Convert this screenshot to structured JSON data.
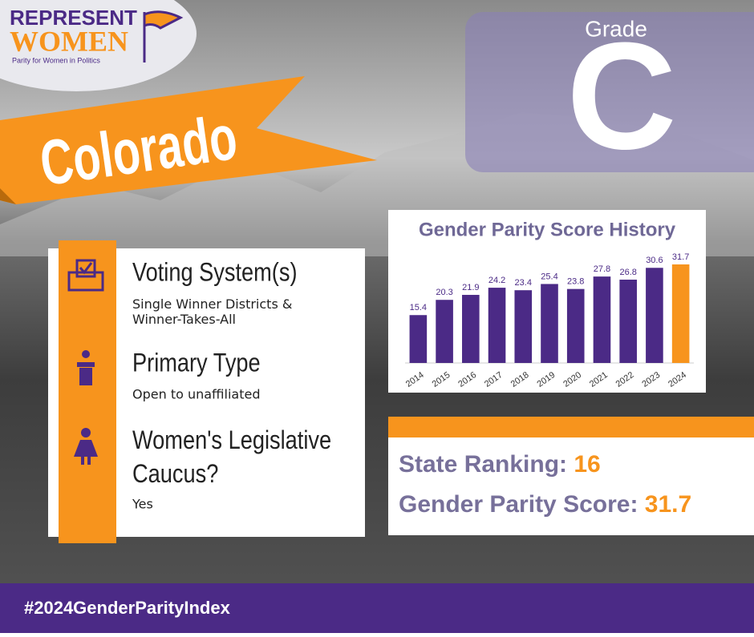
{
  "logo": {
    "line1": "REPRESENT",
    "line2": "WOMEN",
    "tagline": "Parity for Women in Politics"
  },
  "state": "Colorado",
  "grade": {
    "label": "Grade",
    "value": "C"
  },
  "info": [
    {
      "title": "Voting System(s)",
      "text": "Single Winner Districts & Winner-Takes-All"
    },
    {
      "title": "Primary Type",
      "text": "Open to unaffiliated"
    },
    {
      "title": "Women's Legislative Caucus?",
      "text": "Yes"
    }
  ],
  "chart_data": {
    "type": "bar",
    "title": "Gender Parity Score History",
    "categories": [
      "2014",
      "2015",
      "2016",
      "2017",
      "2018",
      "2019",
      "2020",
      "2021",
      "2022",
      "2023",
      "2024"
    ],
    "values": [
      15.4,
      20.3,
      21.9,
      24.2,
      23.4,
      25.4,
      23.8,
      27.8,
      26.8,
      30.6,
      31.7
    ],
    "colors": [
      "#4b2a86",
      "#4b2a86",
      "#4b2a86",
      "#4b2a86",
      "#4b2a86",
      "#4b2a86",
      "#4b2a86",
      "#4b2a86",
      "#4b2a86",
      "#4b2a86",
      "#f7941d"
    ]
  },
  "ranking": {
    "label": "State Ranking:",
    "value": 16
  },
  "score": {
    "label": "Gender Parity Score:",
    "value": 31.7
  },
  "hashtag": "#2024GenderParityIndex"
}
